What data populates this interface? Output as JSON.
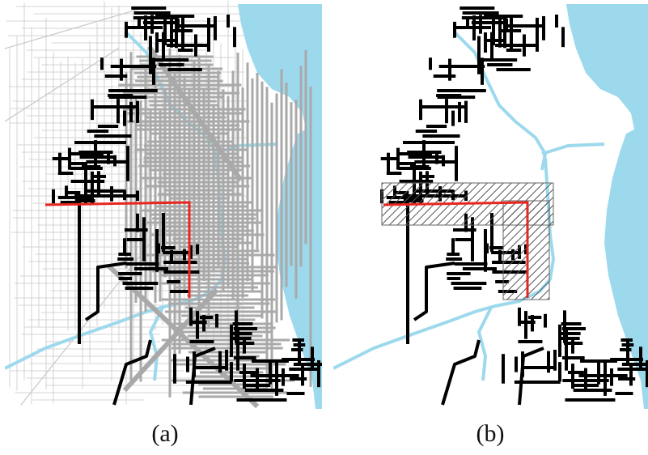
{
  "figure": {
    "panels": [
      {
        "id": "a",
        "caption": "(a)",
        "show_background_streets": true,
        "show_hatched_zone": false
      },
      {
        "id": "b",
        "caption": "(b)",
        "show_background_streets": false,
        "show_hatched_zone": true
      }
    ]
  },
  "colors": {
    "water": "#9dd9ec",
    "background_street": "#c8c8c8",
    "gray_network": "#a9a9a9",
    "black_network": "#000000",
    "red_route": "#e8261f",
    "hatch": "#555555"
  }
}
